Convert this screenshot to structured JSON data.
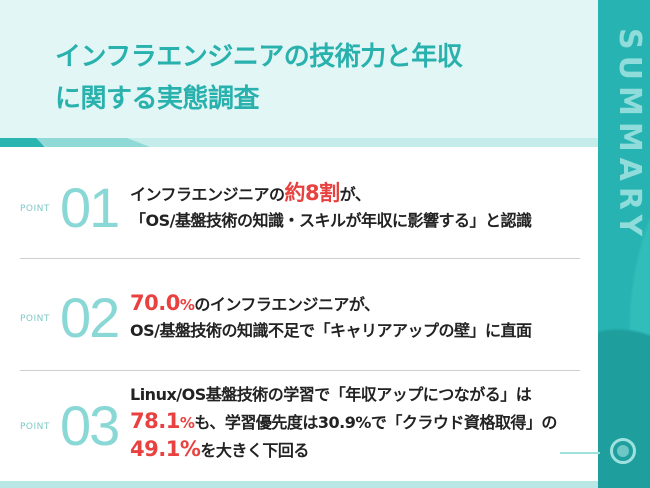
{
  "header": {
    "title_line1": "インフラエンジニアの技術力と年収",
    "title_line2": "に関する実態調査"
  },
  "side": {
    "label": "SUMMARY"
  },
  "points": [
    {
      "label": "POINT",
      "number": "01",
      "line1_pre": "インフラエンジニアの",
      "line1_red": "約8割",
      "line1_post": "が、",
      "line2": "「OS/基盤技術の知識・スキルが年収に影響する」と認識"
    },
    {
      "label": "POINT",
      "number": "02",
      "line1_red": "70.0",
      "line1_pct": "%",
      "line1_post": "のインフラエンジニアが、",
      "line2": "OS/基盤技術の知識不足で「キャリアアップの壁」に直面"
    },
    {
      "label": "POINT",
      "number": "03",
      "line1": "Linux/OS基盤技術の学習で「年収アップにつながる」は",
      "line2_red": "78.1",
      "line2_pct": "%",
      "line2_post": "も、学習優先度は30.9%で「クラウド資格取得」の",
      "line3_red": "49.1%",
      "line3_post": "を大きく下回る"
    }
  ],
  "colors": {
    "accent": "#28b1ad",
    "highlight": "#e8413f"
  }
}
